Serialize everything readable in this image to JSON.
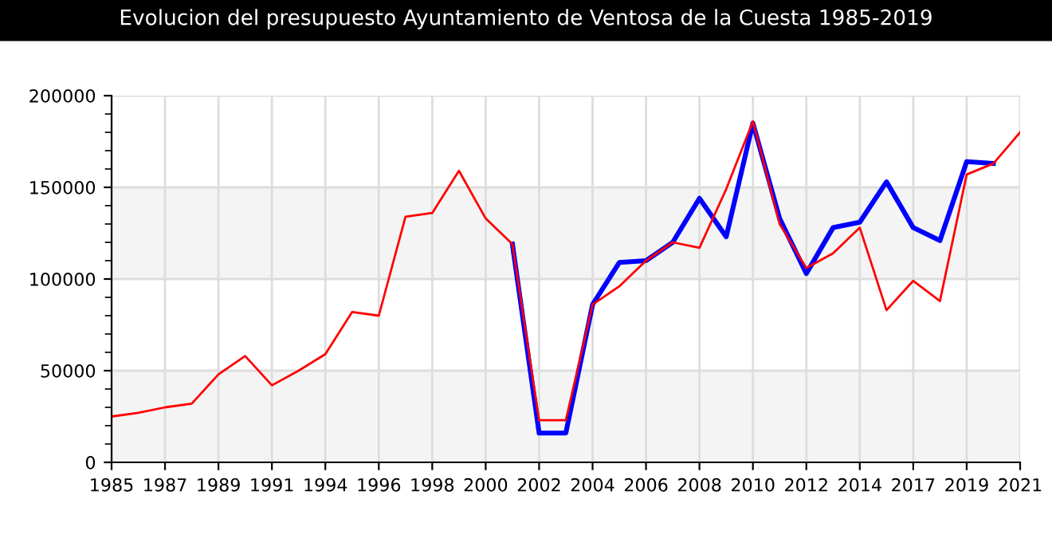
{
  "chart_data": {
    "type": "line",
    "title": "Evolucion del presupuesto Ayuntamiento de Ventosa de la Cuesta 1985-2019",
    "categories": [
      "1985",
      null,
      "1987",
      null,
      "1989",
      null,
      "1991",
      null,
      "1994",
      null,
      "1996",
      null,
      "1998",
      null,
      "2000",
      null,
      "2002",
      null,
      "2004",
      null,
      "2006",
      null,
      "2008",
      null,
      "2010",
      null,
      "2012",
      null,
      "2014",
      null,
      "2017",
      null,
      "2019",
      null,
      "2021"
    ],
    "series": [
      {
        "color": "#0000ff",
        "values": [
          null,
          null,
          null,
          null,
          null,
          null,
          null,
          null,
          null,
          null,
          null,
          null,
          null,
          null,
          null,
          119000,
          16000,
          16000,
          86000,
          109000,
          110000,
          120000,
          144000,
          123000,
          185000,
          133000,
          103000,
          128000,
          131000,
          153000,
          128000,
          121000,
          164000,
          163000,
          null
        ]
      },
      {
        "color": "#ff0000",
        "values": [
          25000,
          27000,
          30000,
          32000,
          48000,
          58000,
          42000,
          50000,
          59000,
          82000,
          80000,
          134000,
          136000,
          159000,
          133000,
          119000,
          23000,
          23000,
          86000,
          96000,
          110000,
          120000,
          117000,
          149000,
          186000,
          130000,
          106000,
          114000,
          128000,
          83000,
          99000,
          88000,
          157000,
          163000,
          180000
        ]
      }
    ],
    "ylim": [
      0,
      200000
    ],
    "yticks": [
      0,
      50000,
      100000,
      150000,
      200000
    ],
    "grid": true,
    "legend": false,
    "marker": "none",
    "line_style": "solid"
  }
}
